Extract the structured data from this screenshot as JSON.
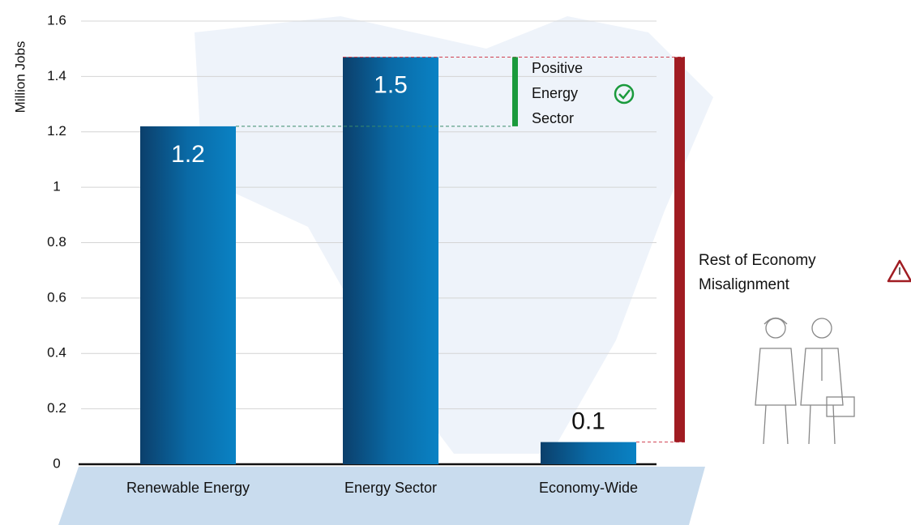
{
  "chart_data": {
    "type": "bar",
    "y_label": "Million Jobs",
    "categories": [
      "Renewable Energy",
      "Energy Sector",
      "Economy-Wide"
    ],
    "values": [
      1.22,
      1.47,
      0.08
    ],
    "value_labels": [
      "1.2",
      "1.5",
      "0.1"
    ],
    "color": "#0a6aa6",
    "ylim": [
      0,
      1.6
    ],
    "yticks": [
      0,
      0.2,
      0.4,
      0.6,
      0.8,
      1,
      1.2,
      1.4,
      1.6
    ],
    "grid": true,
    "annotations": [
      {
        "lines": [
          "Positive",
          "Energy",
          "Sector"
        ],
        "color": "#1a9a3c"
      },
      {
        "lines": [
          "Rest of Economy",
          "Misalignment"
        ],
        "color": "#a01c22"
      }
    ]
  }
}
